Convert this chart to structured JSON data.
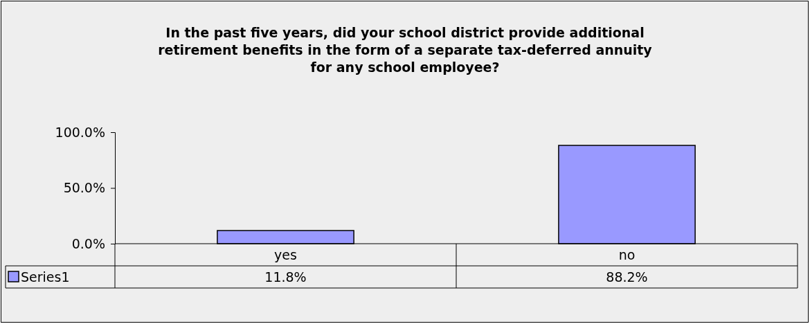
{
  "chart_data": {
    "type": "bar",
    "title": "In the past five years, did your school district provide additional retirement benefits in the form of a separate tax-deferred annuity for any school employee?",
    "categories": [
      "yes",
      "no"
    ],
    "series": [
      {
        "name": "Series1",
        "color": "#9999ff",
        "values": [
          11.8,
          88.2
        ],
        "value_labels": [
          "11.8%",
          "88.2%"
        ]
      }
    ],
    "ylim": [
      0,
      100
    ],
    "yticks": [
      {
        "value": 0,
        "label": "0.0%"
      },
      {
        "value": 50,
        "label": "50.0%"
      },
      {
        "value": 100,
        "label": "100.0%"
      }
    ],
    "grid": false
  }
}
